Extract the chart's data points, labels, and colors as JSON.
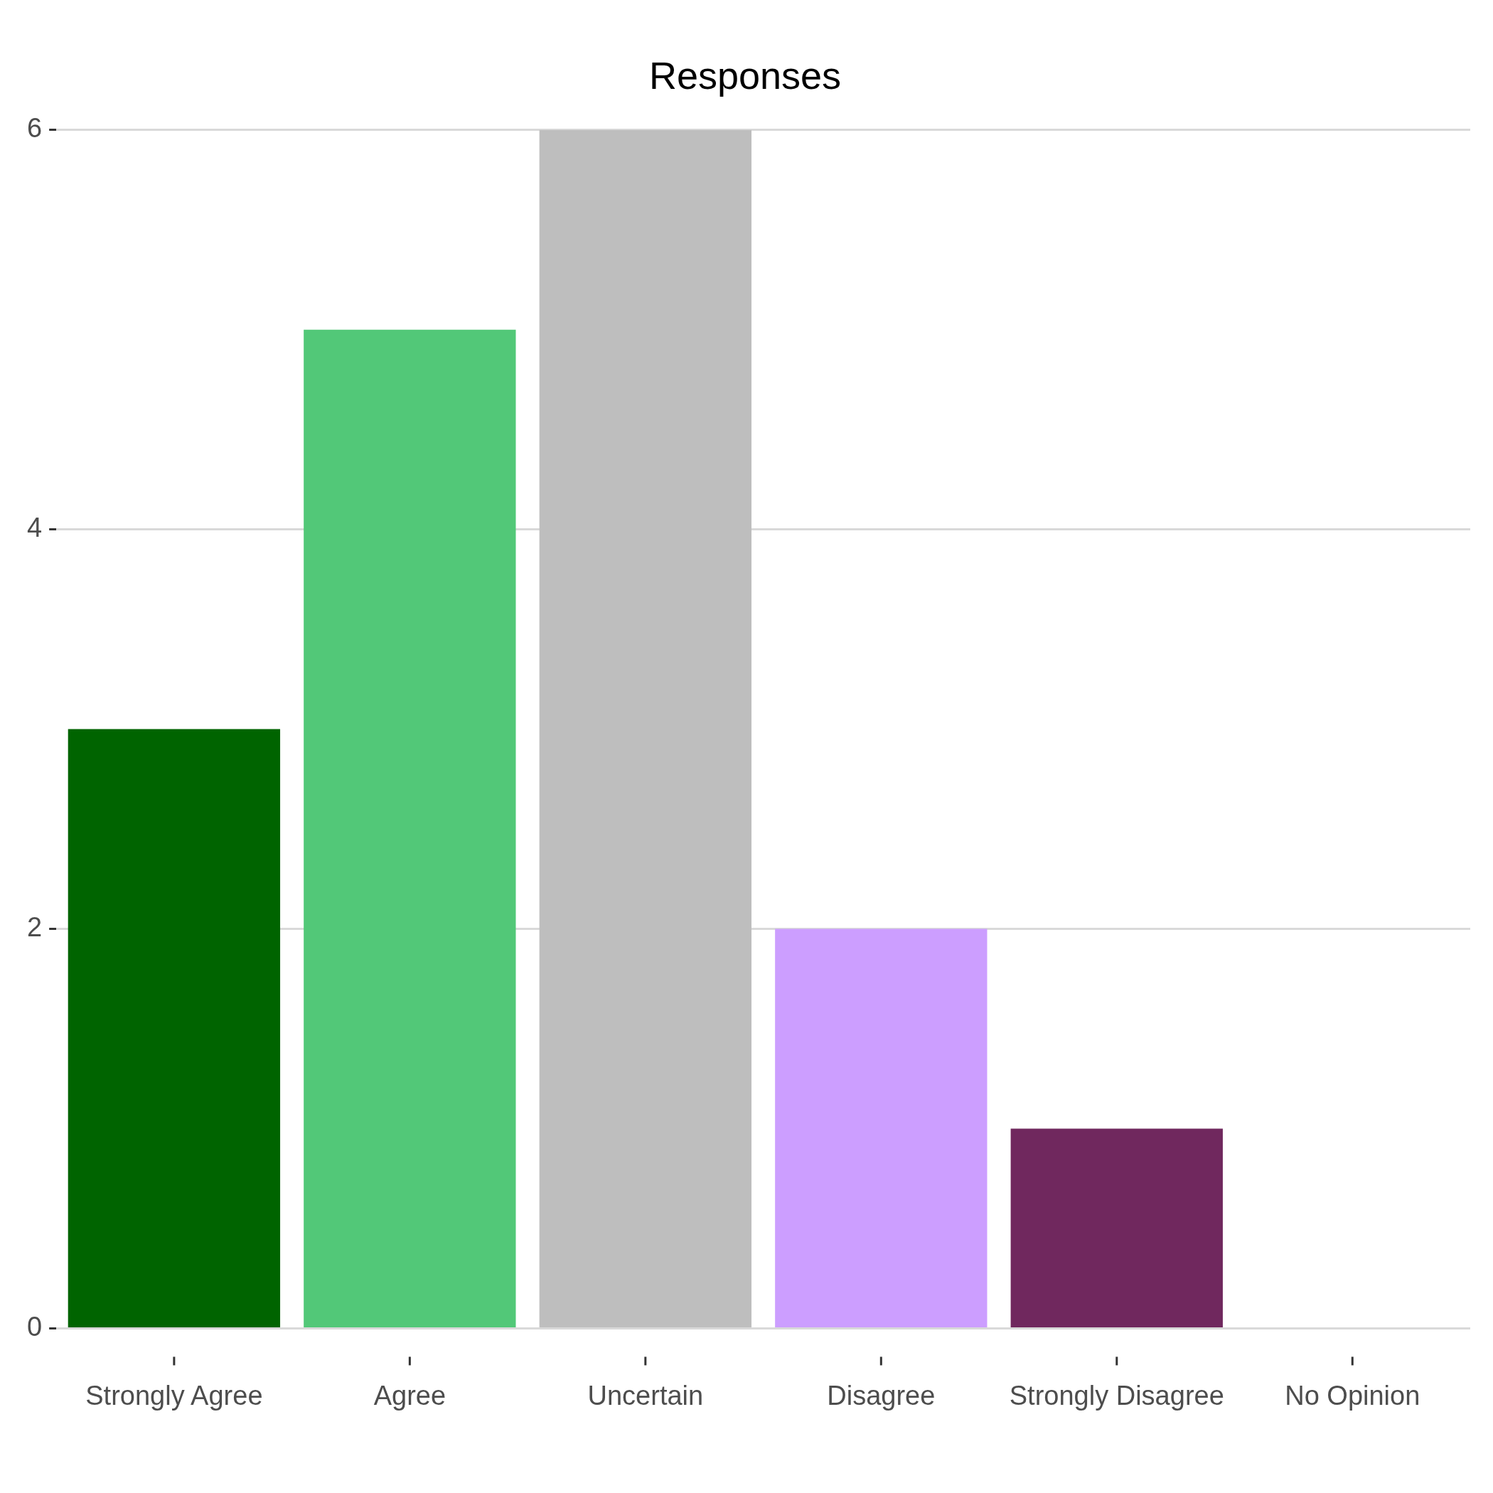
{
  "chart_data": {
    "type": "bar",
    "title": "Responses",
    "categories": [
      "Strongly Agree",
      "Agree",
      "Uncertain",
      "Disagree",
      "Strongly Disagree",
      "No Opinion"
    ],
    "values": [
      3,
      5,
      6,
      2,
      1,
      0
    ],
    "colors": [
      "#006400",
      "#52c878",
      "#bebebe",
      "#cc9eff",
      "#70285e",
      "#888888"
    ],
    "ylim": [
      0,
      6
    ],
    "yticks": [
      0,
      2,
      4,
      6
    ],
    "grid": "y",
    "legend": false
  }
}
